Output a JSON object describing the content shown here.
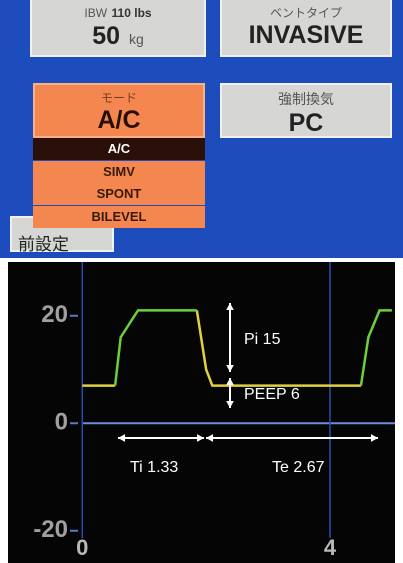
{
  "ui": {
    "weight": {
      "ibw_label": "IBW",
      "ibw_value": "110 lbs",
      "value": "50",
      "unit": "kg"
    },
    "vent_type": {
      "label": "ベントタイプ",
      "value": "INVASIVE"
    },
    "mode": {
      "label": "モード",
      "value": "A/C",
      "options": [
        "A/C",
        "SIMV",
        "SPONT",
        "BILEVEL"
      ]
    },
    "control": {
      "label": "強制換気",
      "value": "PC"
    },
    "preset": "前設定"
  },
  "chart_data": {
    "type": "line",
    "x": [
      0,
      0.53,
      0.62,
      0.9,
      1.85,
      2.0,
      2.1,
      4.5,
      4.62,
      4.8,
      5.0
    ],
    "series": [
      {
        "color": "#e0d040",
        "values": [
          7,
          7,
          null,
          null,
          21,
          10,
          7,
          7,
          null,
          null,
          null
        ]
      },
      {
        "color": "#6ccf3c",
        "values": [
          null,
          7,
          16,
          21,
          21,
          null,
          null,
          7,
          16,
          21,
          21
        ]
      }
    ],
    "xlim": [
      -1.2,
      5.05
    ],
    "xticks": [
      0,
      4
    ],
    "ylim": [
      -26,
      30
    ],
    "yticks": [
      20,
      0,
      -20
    ],
    "annotations": [
      "Pi 15",
      "PEEP 6",
      "Ti 1.33",
      "Te 2.67"
    ]
  }
}
